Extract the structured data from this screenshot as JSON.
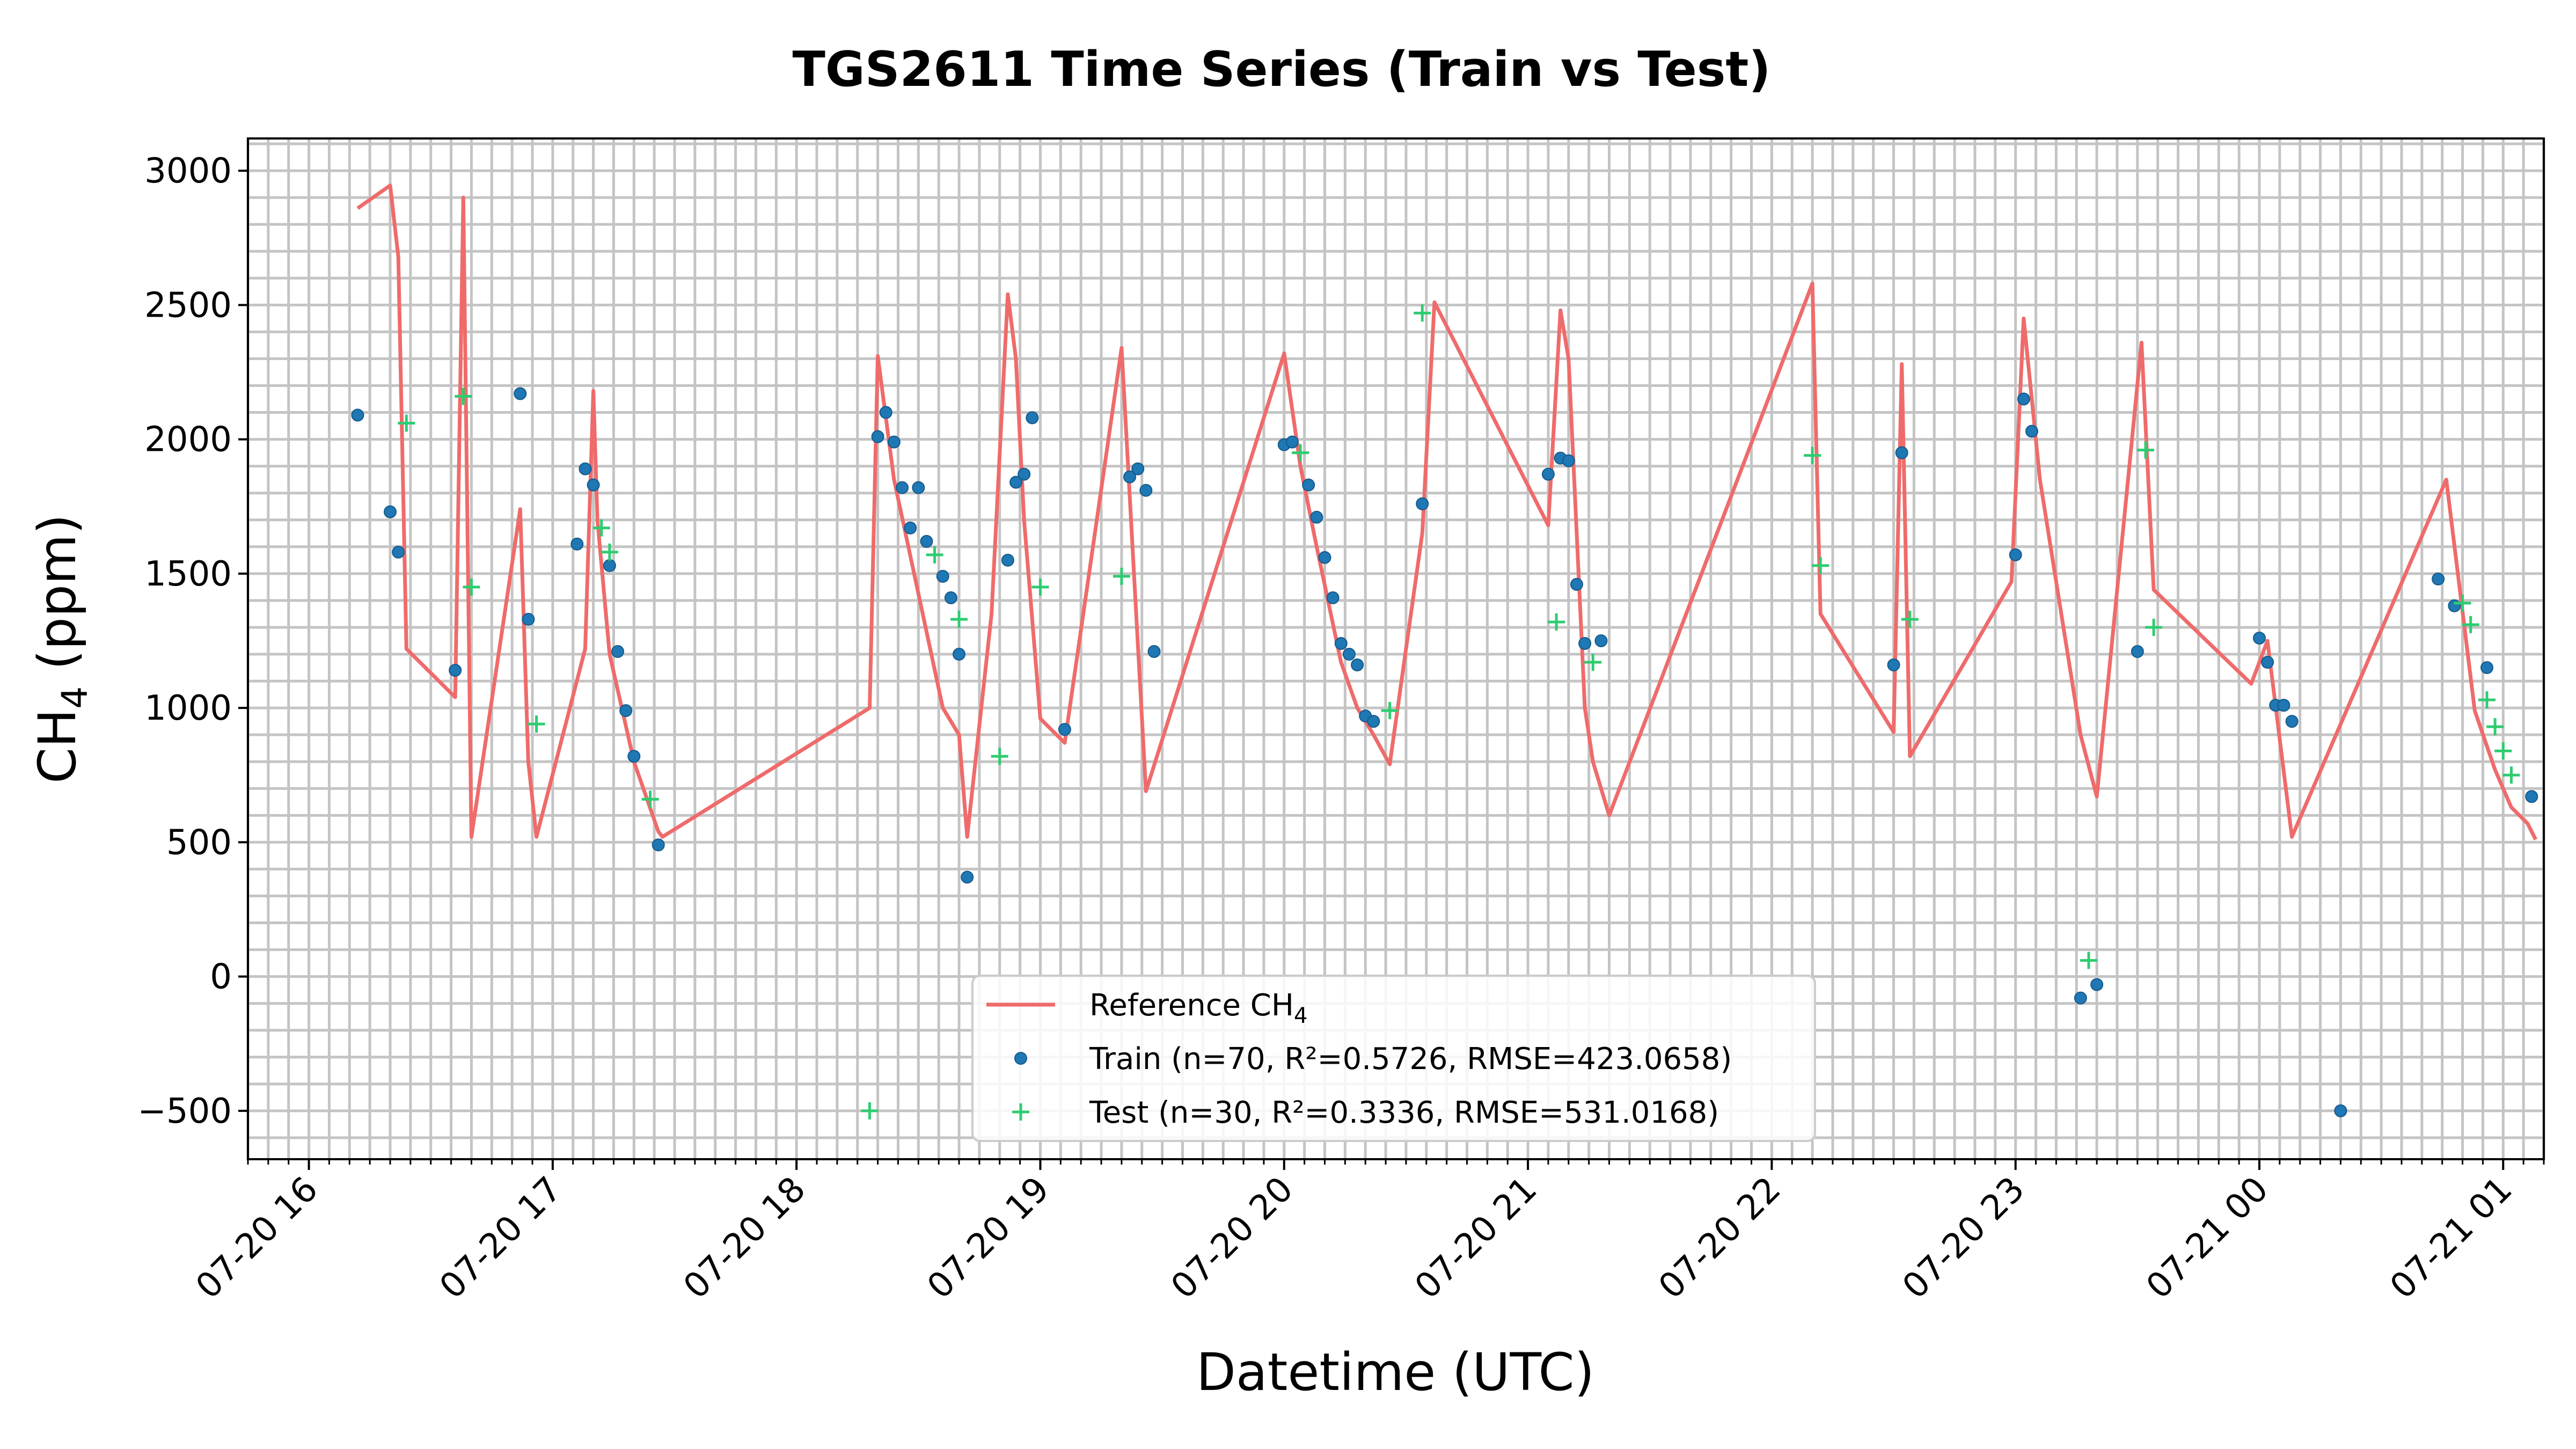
{
  "chart_data": {
    "type": "line",
    "title": "TGS2611 Time Series (Train vs Test)",
    "xlabel": "Datetime (UTC)",
    "ylabel_main": "CH",
    "ylabel_sub": "4",
    "ylabel_unit": " (ppm)",
    "x_axis": {
      "type": "time",
      "range": [
        "07-20 15:45",
        "07-21 01:10"
      ],
      "ticks": [
        {
          "time": "07-20 16:00",
          "label": "07-20 16"
        },
        {
          "time": "07-20 17:00",
          "label": "07-20 17"
        },
        {
          "time": "07-20 18:00",
          "label": "07-20 18"
        },
        {
          "time": "07-20 19:00",
          "label": "07-20 19"
        },
        {
          "time": "07-20 20:00",
          "label": "07-20 20"
        },
        {
          "time": "07-20 21:00",
          "label": "07-20 21"
        },
        {
          "time": "07-20 22:00",
          "label": "07-20 22"
        },
        {
          "time": "07-20 23:00",
          "label": "07-20 23"
        },
        {
          "time": "07-21 00:00",
          "label": "07-21 00"
        },
        {
          "time": "07-21 01:00",
          "label": "07-21 01"
        }
      ],
      "minor_tick_minutes": 5
    },
    "y_axis": {
      "range": [
        -680,
        3120
      ],
      "ticks": [
        -500,
        0,
        500,
        1000,
        1500,
        2000,
        2500,
        3000
      ],
      "minor_step": 100
    },
    "grid": true,
    "legend_position": "bottom-center",
    "colors": {
      "reference": "#ef6b6b",
      "train": "#1f77b4",
      "test": "#2ecc71",
      "grid": "#c4c4c4"
    },
    "series": [
      {
        "name": "Reference CH",
        "name_sub": "4",
        "kind": "line",
        "points": [
          [
            "07-20 16:12",
            2860
          ],
          [
            "07-20 16:20",
            2945
          ],
          [
            "07-20 16:22",
            2680
          ],
          [
            "07-20 16:24",
            1220
          ],
          [
            "07-20 16:36",
            1040
          ],
          [
            "07-20 16:38",
            2900
          ],
          [
            "07-20 16:40",
            520
          ],
          [
            "07-20 16:52",
            1740
          ],
          [
            "07-20 16:54",
            800
          ],
          [
            "07-20 16:56",
            520
          ],
          [
            "07-20 17:08",
            1220
          ],
          [
            "07-20 17:10",
            2180
          ],
          [
            "07-20 17:11",
            1700
          ],
          [
            "07-20 17:14",
            1200
          ],
          [
            "07-20 17:20",
            800
          ],
          [
            "07-20 17:26",
            540
          ],
          [
            "07-20 17:27",
            520
          ],
          [
            "07-20 18:18",
            1000
          ],
          [
            "07-20 18:20",
            2310
          ],
          [
            "07-20 18:24",
            1850
          ],
          [
            "07-20 18:36",
            1000
          ],
          [
            "07-20 18:40",
            900
          ],
          [
            "07-20 18:42",
            520
          ],
          [
            "07-20 18:48",
            1350
          ],
          [
            "07-20 18:52",
            2540
          ],
          [
            "07-20 18:54",
            2300
          ],
          [
            "07-20 18:56",
            1700
          ],
          [
            "07-20 19:00",
            960
          ],
          [
            "07-20 19:06",
            870
          ],
          [
            "07-20 19:20",
            2340
          ],
          [
            "07-20 19:26",
            690
          ],
          [
            "07-20 20:00",
            2320
          ],
          [
            "07-20 20:04",
            1900
          ],
          [
            "07-20 20:08",
            1600
          ],
          [
            "07-20 20:14",
            1170
          ],
          [
            "07-20 20:18",
            1000
          ],
          [
            "07-20 20:22",
            900
          ],
          [
            "07-20 20:26",
            790
          ],
          [
            "07-20 20:34",
            1650
          ],
          [
            "07-20 20:37",
            2510
          ],
          [
            "07-20 21:05",
            1680
          ],
          [
            "07-20 21:08",
            2480
          ],
          [
            "07-20 21:10",
            2300
          ],
          [
            "07-20 21:14",
            1000
          ],
          [
            "07-20 21:16",
            800
          ],
          [
            "07-20 21:20",
            600
          ],
          [
            "07-20 22:10",
            2580
          ],
          [
            "07-20 22:12",
            1350
          ],
          [
            "07-20 22:30",
            910
          ],
          [
            "07-20 22:32",
            2280
          ],
          [
            "07-20 22:34",
            820
          ],
          [
            "07-20 22:59",
            1470
          ],
          [
            "07-20 23:02",
            2450
          ],
          [
            "07-20 23:06",
            1850
          ],
          [
            "07-20 23:16",
            900
          ],
          [
            "07-20 23:20",
            670
          ],
          [
            "07-20 23:31",
            2360
          ],
          [
            "07-20 23:34",
            1440
          ],
          [
            "07-20 23:58",
            1090
          ],
          [
            "07-21 00:02",
            1250
          ],
          [
            "07-21 00:08",
            520
          ],
          [
            "07-21 00:46",
            1850
          ],
          [
            "07-21 00:53",
            990
          ],
          [
            "07-21 00:58",
            770
          ],
          [
            "07-21 01:02",
            630
          ],
          [
            "07-21 01:06",
            570
          ],
          [
            "07-21 01:08",
            510
          ]
        ]
      },
      {
        "name": "Train (n=70, R²=0.5726, RMSE=423.0658)",
        "kind": "scatter",
        "points": [
          [
            "07-20 16:12",
            2090
          ],
          [
            "07-20 16:20",
            1730
          ],
          [
            "07-20 16:22",
            1580
          ],
          [
            "07-20 16:36",
            1140
          ],
          [
            "07-20 16:52",
            2170
          ],
          [
            "07-20 16:54",
            1330
          ],
          [
            "07-20 17:06",
            1610
          ],
          [
            "07-20 17:08",
            1890
          ],
          [
            "07-20 17:10",
            1830
          ],
          [
            "07-20 17:14",
            1530
          ],
          [
            "07-20 17:16",
            1210
          ],
          [
            "07-20 17:18",
            990
          ],
          [
            "07-20 17:20",
            820
          ],
          [
            "07-20 17:26",
            490
          ],
          [
            "07-20 18:20",
            2010
          ],
          [
            "07-20 18:22",
            2100
          ],
          [
            "07-20 18:24",
            1990
          ],
          [
            "07-20 18:26",
            1820
          ],
          [
            "07-20 18:28",
            1670
          ],
          [
            "07-20 18:30",
            1820
          ],
          [
            "07-20 18:32",
            1620
          ],
          [
            "07-20 18:36",
            1490
          ],
          [
            "07-20 18:38",
            1410
          ],
          [
            "07-20 18:40",
            1200
          ],
          [
            "07-20 18:42",
            370
          ],
          [
            "07-20 18:52",
            1550
          ],
          [
            "07-20 18:54",
            1840
          ],
          [
            "07-20 18:56",
            1870
          ],
          [
            "07-20 18:58",
            2080
          ],
          [
            "07-20 19:06",
            920
          ],
          [
            "07-20 19:22",
            1860
          ],
          [
            "07-20 19:24",
            1890
          ],
          [
            "07-20 19:26",
            1810
          ],
          [
            "07-20 19:28",
            1210
          ],
          [
            "07-20 20:00",
            1980
          ],
          [
            "07-20 20:02",
            1990
          ],
          [
            "07-20 20:06",
            1830
          ],
          [
            "07-20 20:08",
            1710
          ],
          [
            "07-20 20:10",
            1560
          ],
          [
            "07-20 20:12",
            1410
          ],
          [
            "07-20 20:14",
            1240
          ],
          [
            "07-20 20:16",
            1200
          ],
          [
            "07-20 20:18",
            1160
          ],
          [
            "07-20 20:20",
            970
          ],
          [
            "07-20 20:22",
            950
          ],
          [
            "07-20 20:34",
            1760
          ],
          [
            "07-20 21:05",
            1870
          ],
          [
            "07-20 21:08",
            1930
          ],
          [
            "07-20 21:10",
            1920
          ],
          [
            "07-20 21:12",
            1460
          ],
          [
            "07-20 21:14",
            1240
          ],
          [
            "07-20 21:18",
            1250
          ],
          [
            "07-20 22:30",
            1160
          ],
          [
            "07-20 22:32",
            1950
          ],
          [
            "07-20 23:00",
            1570
          ],
          [
            "07-20 23:02",
            2150
          ],
          [
            "07-20 23:04",
            2030
          ],
          [
            "07-20 23:16",
            -80
          ],
          [
            "07-20 23:20",
            -30
          ],
          [
            "07-20 23:30",
            1210
          ],
          [
            "07-21 00:00",
            1260
          ],
          [
            "07-21 00:02",
            1170
          ],
          [
            "07-21 00:04",
            1010
          ],
          [
            "07-21 00:06",
            1010
          ],
          [
            "07-21 00:08",
            950
          ],
          [
            "07-21 00:44",
            1480
          ],
          [
            "07-21 00:48",
            1380
          ],
          [
            "07-21 00:56",
            1150
          ],
          [
            "07-21 01:07",
            670
          ],
          [
            "07-21 00:20",
            -500
          ]
        ]
      },
      {
        "name": "Test (n=30, R²=0.3336, RMSE=531.0168)",
        "kind": "scatter",
        "marker": "plus",
        "points": [
          [
            "07-20 16:24",
            2060
          ],
          [
            "07-20 16:38",
            2160
          ],
          [
            "07-20 16:40",
            1450
          ],
          [
            "07-20 16:56",
            940
          ],
          [
            "07-20 17:12",
            1670
          ],
          [
            "07-20 17:14",
            1580
          ],
          [
            "07-20 17:24",
            660
          ],
          [
            "07-20 18:18",
            -500
          ],
          [
            "07-20 18:34",
            1570
          ],
          [
            "07-20 18:40",
            1330
          ],
          [
            "07-20 18:50",
            820
          ],
          [
            "07-20 19:00",
            1450
          ],
          [
            "07-20 19:20",
            1490
          ],
          [
            "07-20 20:04",
            1950
          ],
          [
            "07-20 20:26",
            990
          ],
          [
            "07-20 20:34",
            2470
          ],
          [
            "07-20 21:07",
            1320
          ],
          [
            "07-20 21:16",
            1170
          ],
          [
            "07-20 22:10",
            1940
          ],
          [
            "07-20 22:12",
            1530
          ],
          [
            "07-20 22:34",
            1330
          ],
          [
            "07-20 23:18",
            60
          ],
          [
            "07-20 23:32",
            1960
          ],
          [
            "07-20 23:34",
            1300
          ],
          [
            "07-21 00:50",
            1390
          ],
          [
            "07-21 00:52",
            1310
          ],
          [
            "07-21 00:56",
            1030
          ],
          [
            "07-21 00:58",
            930
          ],
          [
            "07-21 01:00",
            840
          ],
          [
            "07-21 01:02",
            750
          ]
        ]
      }
    ]
  }
}
